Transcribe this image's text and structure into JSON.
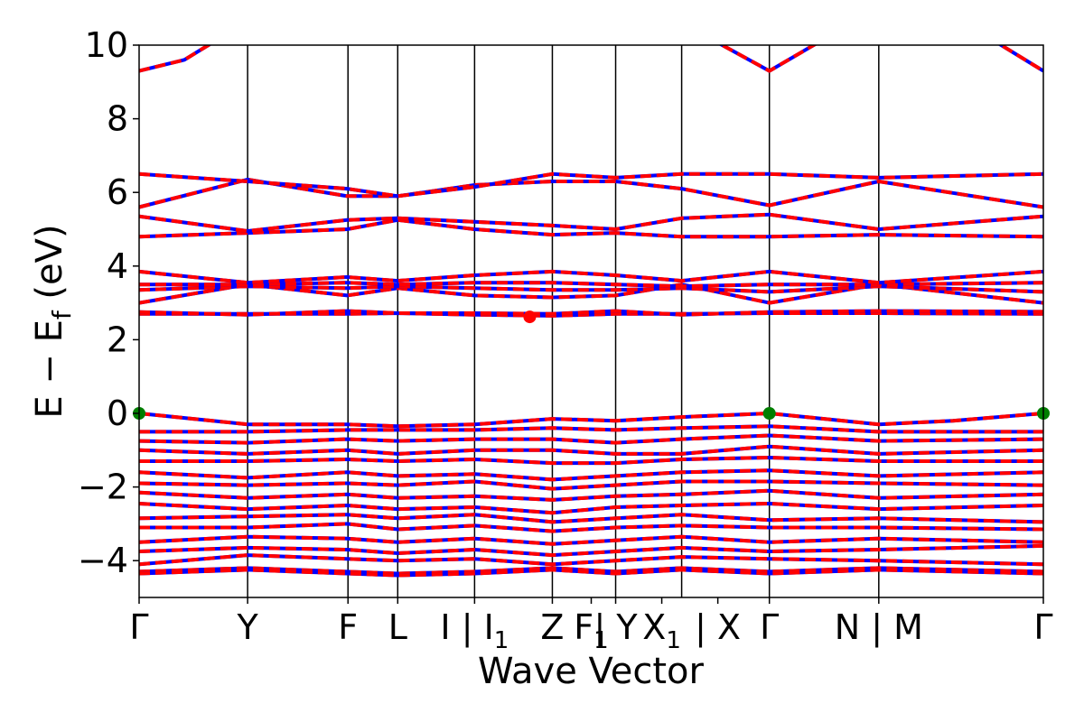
{
  "chart_data": {
    "type": "line",
    "xlabel": "Wave Vector",
    "ylabel": "E − E",
    "ylabel_sub": "f",
    "ylabel_unit": " (eV)",
    "ylim": [
      -5,
      10
    ],
    "yticks": [
      -4,
      -2,
      0,
      2,
      4,
      6,
      8,
      10
    ],
    "ytick_labels": [
      "−4",
      "−2",
      "0",
      "2",
      "4",
      "6",
      "8",
      "10"
    ],
    "grid": false,
    "xrange": [
      0,
      1
    ],
    "kpoint_labels": [
      {
        "x": 0.0,
        "text": "Γ"
      },
      {
        "x": 0.12,
        "text": "Y"
      },
      {
        "x": 0.231,
        "text": "F"
      },
      {
        "x": 0.286,
        "text": "L"
      },
      {
        "x": 0.371,
        "text": "I | I",
        "sub": "1"
      },
      {
        "x": 0.457,
        "text": "Z"
      },
      {
        "x": 0.5,
        "text": "F",
        "sub": "1"
      },
      {
        "x": 0.527,
        "text": "| Y"
      },
      {
        "x": 0.578,
        "text": "X",
        "sub": "1"
      },
      {
        "x": 0.64,
        "text": "| X"
      },
      {
        "x": 0.697,
        "text": "Γ"
      },
      {
        "x": 0.818,
        "text": "N | M"
      },
      {
        "x": 1.0,
        "text": "Γ"
      }
    ],
    "vlines": [
      0.12,
      0.231,
      0.286,
      0.371,
      0.457,
      0.527,
      0.6,
      0.697,
      0.818
    ],
    "series": [
      {
        "name": "",
        "color": "#0000ff",
        "style": "solid"
      },
      {
        "name": "",
        "color": "#ff0000",
        "style": "dashed"
      }
    ],
    "bands": [
      {
        "x": [
          0,
          0.06,
          0.12,
          0.23,
          0.286,
          0.371,
          0.457,
          0.527,
          0.6,
          0.697,
          0.818,
          0.818,
          0.9,
          1.0
        ],
        "y": [
          0.0,
          -0.15,
          -0.3,
          -0.3,
          -0.35,
          -0.3,
          -0.15,
          -0.2,
          -0.1,
          0.0,
          -0.3,
          -0.3,
          -0.2,
          0.0
        ]
      },
      {
        "x": [
          0,
          0.12,
          0.23,
          0.286,
          0.371,
          0.457,
          0.527,
          0.6,
          0.697,
          0.818,
          1.0
        ],
        "y": [
          -0.5,
          -0.5,
          -0.45,
          -0.45,
          -0.45,
          -0.4,
          -0.45,
          -0.4,
          -0.35,
          -0.5,
          -0.5
        ]
      },
      {
        "x": [
          0,
          0.12,
          0.23,
          0.286,
          0.371,
          0.457,
          0.527,
          0.6,
          0.697,
          0.818,
          1.0
        ],
        "y": [
          -0.75,
          -0.8,
          -0.7,
          -0.75,
          -0.7,
          -0.7,
          -0.8,
          -0.7,
          -0.6,
          -0.75,
          -0.7
        ]
      },
      {
        "x": [
          0,
          0.12,
          0.23,
          0.286,
          0.371,
          0.457,
          0.527,
          0.6,
          0.697,
          0.818,
          1.0
        ],
        "y": [
          -1.0,
          -1.1,
          -1.0,
          -1.1,
          -1.0,
          -1.0,
          -1.1,
          -1.1,
          -0.9,
          -1.1,
          -1.0
        ]
      },
      {
        "x": [
          0,
          0.12,
          0.23,
          0.286,
          0.371,
          0.457,
          0.527,
          0.6,
          0.697,
          0.818,
          1.0
        ],
        "y": [
          -1.3,
          -1.3,
          -1.25,
          -1.3,
          -1.25,
          -1.35,
          -1.35,
          -1.25,
          -1.2,
          -1.3,
          -1.3
        ]
      },
      {
        "x": [
          0,
          0.12,
          0.23,
          0.286,
          0.371,
          0.457,
          0.527,
          0.6,
          0.697,
          0.818,
          1.0
        ],
        "y": [
          -1.6,
          -1.75,
          -1.6,
          -1.7,
          -1.65,
          -1.8,
          -1.7,
          -1.6,
          -1.55,
          -1.7,
          -1.6
        ]
      },
      {
        "x": [
          0,
          0.12,
          0.23,
          0.286,
          0.371,
          0.457,
          0.527,
          0.6,
          0.697,
          0.818,
          1.0
        ],
        "y": [
          -1.9,
          -1.95,
          -1.9,
          -1.95,
          -1.85,
          -2.05,
          -1.95,
          -1.85,
          -1.85,
          -1.9,
          -1.95
        ]
      },
      {
        "x": [
          0,
          0.12,
          0.23,
          0.286,
          0.371,
          0.457,
          0.527,
          0.6,
          0.697,
          0.818,
          1.0
        ],
        "y": [
          -2.15,
          -2.3,
          -2.2,
          -2.3,
          -2.25,
          -2.35,
          -2.25,
          -2.2,
          -2.1,
          -2.3,
          -2.2
        ]
      },
      {
        "x": [
          0,
          0.12,
          0.23,
          0.286,
          0.371,
          0.457,
          0.527,
          0.6,
          0.697,
          0.818,
          1.0
        ],
        "y": [
          -2.45,
          -2.6,
          -2.5,
          -2.6,
          -2.55,
          -2.7,
          -2.55,
          -2.5,
          -2.45,
          -2.6,
          -2.5
        ]
      },
      {
        "x": [
          0,
          0.12,
          0.23,
          0.286,
          0.371,
          0.457,
          0.527,
          0.6,
          0.697,
          0.818,
          1.0
        ],
        "y": [
          -2.85,
          -2.8,
          -2.75,
          -2.85,
          -2.75,
          -2.95,
          -2.85,
          -2.75,
          -2.9,
          -2.85,
          -2.95
        ]
      },
      {
        "x": [
          0,
          0.12,
          0.23,
          0.286,
          0.371,
          0.457,
          0.527,
          0.6,
          0.697,
          0.818,
          1.0
        ],
        "y": [
          -3.1,
          -3.1,
          -3.0,
          -3.15,
          -3.05,
          -3.2,
          -3.1,
          -3.05,
          -3.1,
          -3.1,
          -3.15
        ]
      },
      {
        "x": [
          0,
          0.12,
          0.23,
          0.286,
          0.371,
          0.457,
          0.527,
          0.6,
          0.697,
          0.818,
          1.0
        ],
        "y": [
          -3.5,
          -3.35,
          -3.4,
          -3.5,
          -3.4,
          -3.55,
          -3.45,
          -3.35,
          -3.5,
          -3.4,
          -3.5
        ]
      },
      {
        "x": [
          0,
          0.12,
          0.23,
          0.286,
          0.371,
          0.457,
          0.527,
          0.6,
          0.697,
          0.818,
          1.0
        ],
        "y": [
          -3.75,
          -3.65,
          -3.7,
          -3.8,
          -3.7,
          -3.85,
          -3.75,
          -3.65,
          -3.75,
          -3.7,
          -3.6
        ]
      },
      {
        "x": [
          0,
          0.12,
          0.23,
          0.286,
          0.371,
          0.457,
          0.527,
          0.6,
          0.697,
          0.818,
          1.0
        ],
        "y": [
          -4.1,
          -3.85,
          -3.95,
          -4.0,
          -3.95,
          -4.1,
          -4.0,
          -3.9,
          -3.95,
          -4.0,
          -4.1
        ]
      },
      {
        "x": [
          0,
          0.12,
          0.23,
          0.286,
          0.371,
          0.457,
          0.527,
          0.6,
          0.697,
          0.818,
          1.0
        ],
        "y": [
          -4.3,
          -4.2,
          -4.3,
          -4.35,
          -4.3,
          -4.2,
          -4.3,
          -4.2,
          -4.3,
          -4.2,
          -4.3
        ]
      },
      {
        "x": [
          0,
          0.12,
          0.23,
          0.286,
          0.371,
          0.457,
          0.527,
          0.6,
          0.697,
          0.818,
          1.0
        ],
        "y": [
          -4.35,
          -4.25,
          -4.35,
          -4.4,
          -4.35,
          -4.25,
          -4.35,
          -4.25,
          -4.35,
          -4.25,
          -4.35
        ]
      },
      {
        "x": [
          0,
          0.12,
          0.23,
          0.286,
          0.371,
          0.457,
          0.527,
          0.6,
          0.697,
          0.818,
          1.0
        ],
        "y": [
          2.7,
          2.7,
          2.7,
          2.72,
          2.68,
          2.65,
          2.7,
          2.7,
          2.72,
          2.72,
          2.7
        ]
      },
      {
        "x": [
          0,
          0.12,
          0.23,
          0.286,
          0.371,
          0.457,
          0.527,
          0.6,
          0.697,
          0.818,
          1.0
        ],
        "y": [
          2.75,
          2.68,
          2.78,
          2.72,
          2.72,
          2.7,
          2.78,
          2.68,
          2.75,
          2.78,
          2.76
        ]
      },
      {
        "x": [
          0,
          0.12,
          0.23,
          0.286,
          0.371,
          0.457,
          0.527,
          0.6,
          0.697,
          0.818,
          1.0
        ],
        "y": [
          3.0,
          3.5,
          3.2,
          3.4,
          3.2,
          3.15,
          3.2,
          3.5,
          3.0,
          3.5,
          3.0
        ]
      },
      {
        "x": [
          0,
          0.12,
          0.23,
          0.286,
          0.371,
          0.457,
          0.527,
          0.6,
          0.697,
          0.818,
          1.0
        ],
        "y": [
          3.35,
          3.45,
          3.4,
          3.45,
          3.4,
          3.35,
          3.35,
          3.4,
          3.3,
          3.45,
          3.3
        ]
      },
      {
        "x": [
          0,
          0.12,
          0.23,
          0.286,
          0.371,
          0.457,
          0.527,
          0.6,
          0.697,
          0.818,
          1.0
        ],
        "y": [
          3.5,
          3.5,
          3.55,
          3.5,
          3.55,
          3.55,
          3.5,
          3.45,
          3.5,
          3.5,
          3.55
        ]
      },
      {
        "x": [
          0,
          0.12,
          0.23,
          0.286,
          0.371,
          0.457,
          0.527,
          0.6,
          0.697,
          0.818,
          1.0
        ],
        "y": [
          3.85,
          3.55,
          3.7,
          3.6,
          3.75,
          3.85,
          3.75,
          3.6,
          3.85,
          3.55,
          3.85
        ]
      },
      {
        "x": [
          0,
          0.12,
          0.23,
          0.286,
          0.371,
          0.457,
          0.527,
          0.6,
          0.697,
          0.818,
          1.0
        ],
        "y": [
          4.8,
          4.9,
          5.0,
          5.25,
          5.0,
          4.85,
          4.9,
          4.8,
          4.8,
          4.85,
          4.8
        ]
      },
      {
        "x": [
          0,
          0.12,
          0.23,
          0.286,
          0.371,
          0.457,
          0.527,
          0.6,
          0.697,
          0.818,
          1.0
        ],
        "y": [
          5.35,
          4.95,
          5.25,
          5.3,
          5.2,
          5.1,
          5.0,
          5.3,
          5.4,
          5.0,
          5.35
        ]
      },
      {
        "x": [
          0,
          0.12,
          0.23,
          0.286,
          0.371,
          0.457,
          0.527,
          0.6,
          0.697,
          0.818,
          1.0
        ],
        "y": [
          5.6,
          6.35,
          5.9,
          5.9,
          6.2,
          6.3,
          6.3,
          6.1,
          5.65,
          6.3,
          5.6
        ]
      },
      {
        "x": [
          0,
          0.12,
          0.23,
          0.286,
          0.371,
          0.457,
          0.527,
          0.6,
          0.697,
          0.818,
          1.0
        ],
        "y": [
          6.5,
          6.3,
          6.1,
          5.9,
          6.15,
          6.5,
          6.4,
          6.5,
          6.5,
          6.4,
          6.5
        ]
      },
      {
        "x": [
          0,
          0.05,
          0.09
        ],
        "y": [
          9.3,
          9.6,
          10.2
        ]
      },
      {
        "x": [
          0.63,
          0.697,
          0.76
        ],
        "y": [
          10.2,
          9.3,
          10.2
        ]
      },
      {
        "x": [
          0.94,
          1.0
        ],
        "y": [
          10.2,
          9.3
        ]
      }
    ],
    "markers": [
      {
        "x": 0.0,
        "y": 0.0,
        "color": "#007f00"
      },
      {
        "x": 0.697,
        "y": 0.0,
        "color": "#007f00"
      },
      {
        "x": 1.0,
        "y": 0.0,
        "color": "#007f00"
      },
      {
        "x": 0.432,
        "y": 2.62,
        "color": "#ff0000"
      }
    ]
  }
}
